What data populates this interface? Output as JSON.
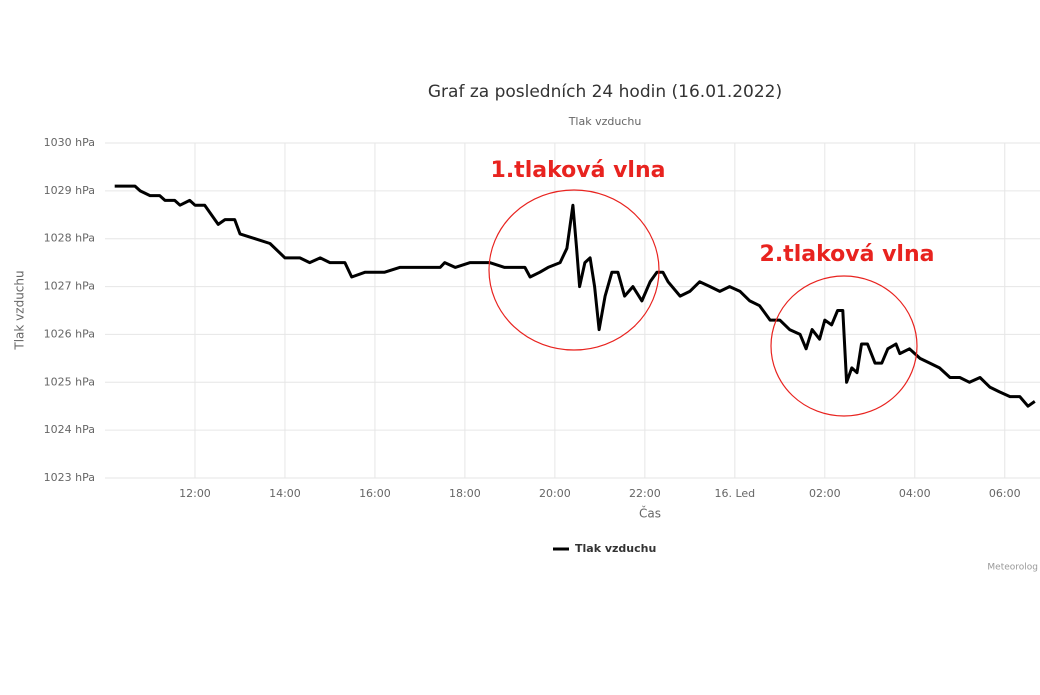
{
  "chart_data": {
    "type": "line",
    "title": "Graf za posledních 24 hodin (16.01.2022)",
    "subtitle": "Tlak vzduchu",
    "y_axis_title": "Tlak vzduchu",
    "x_axis_title": "Čas",
    "credit": "Meteorolog",
    "annotations": [
      {
        "text": "1.tlaková vlna",
        "color": "#e8231f"
      },
      {
        "text": "2.tlaková vlna",
        "color": "#e8231f"
      }
    ],
    "xlim": [
      "10:00",
      "06:47"
    ],
    "xticks": [
      "12:00",
      "14:00",
      "16:00",
      "18:00",
      "20:00",
      "22:00",
      {
        "value": "00:00",
        "label": "16. Led"
      },
      "02:00",
      "04:00",
      "06:00"
    ],
    "ylim": [
      1023,
      1030
    ],
    "yticks": [
      {
        "value": 1023,
        "label": "1023 hPa"
      },
      {
        "value": 1024,
        "label": "1024 hPa"
      },
      {
        "value": 1025,
        "label": "1025 hPa"
      },
      {
        "value": 1026,
        "label": "1026 hPa"
      },
      {
        "value": 1027,
        "label": "1027 hPa"
      },
      {
        "value": 1028,
        "label": "1028 hPa"
      },
      {
        "value": 1029,
        "label": "1029 hPa"
      },
      {
        "value": 1030,
        "label": "1030 hPa"
      }
    ],
    "grid": true,
    "legend": "bottom",
    "x": [
      "10:13",
      "10:40",
      "10:47",
      "11:00",
      "11:13",
      "11:20",
      "11:33",
      "11:40",
      "11:53",
      "12:00",
      "12:13",
      "12:31",
      "12:40",
      "12:53",
      "13:00",
      "13:20",
      "13:40",
      "14:00",
      "14:20",
      "14:33",
      "14:47",
      "15:00",
      "15:20",
      "15:29",
      "15:47",
      "16:00",
      "16:13",
      "16:33",
      "17:00",
      "17:27",
      "17:33",
      "17:47",
      "18:07",
      "18:33",
      "18:53",
      "19:20",
      "19:27",
      "19:40",
      "19:51",
      "20:07",
      "20:16",
      "20:24",
      "20:29",
      "20:33",
      "20:40",
      "20:47",
      "20:53",
      "20:59",
      "21:07",
      "21:16",
      "21:24",
      "21:33",
      "21:44",
      "21:56",
      "22:07",
      "22:16",
      "22:24",
      "22:31",
      "22:47",
      "23:00",
      "23:13",
      "23:27",
      "23:40",
      "23:53",
      "00:07",
      "00:20",
      "00:33",
      "00:47",
      "01:00",
      "01:13",
      "01:27",
      "01:35",
      "01:43",
      "01:53",
      "02:00",
      "02:09",
      "02:17",
      "02:24",
      "02:29",
      "02:36",
      "02:43",
      "02:49",
      "02:57",
      "03:07",
      "03:16",
      "03:24",
      "03:35",
      "03:40",
      "03:53",
      "04:07",
      "04:20",
      "04:33",
      "04:47",
      "05:00",
      "05:13",
      "05:27",
      "05:40",
      "05:53",
      "06:07",
      "06:20",
      "06:31",
      "06:40"
    ],
    "series": [
      {
        "name": "Tlak vzduchu",
        "color": "#000000",
        "values": [
          1029.1,
          1029.1,
          1029.0,
          1028.9,
          1028.9,
          1028.8,
          1028.8,
          1028.7,
          1028.8,
          1028.7,
          1028.7,
          1028.3,
          1028.4,
          1028.4,
          1028.1,
          1028.0,
          1027.9,
          1027.6,
          1027.6,
          1027.5,
          1027.6,
          1027.5,
          1027.5,
          1027.2,
          1027.3,
          1027.3,
          1027.3,
          1027.4,
          1027.4,
          1027.4,
          1027.5,
          1027.4,
          1027.5,
          1027.5,
          1027.4,
          1027.4,
          1027.2,
          1027.3,
          1027.4,
          1027.5,
          1027.8,
          1028.7,
          1027.8,
          1027.0,
          1027.5,
          1027.6,
          1027.0,
          1026.1,
          1026.8,
          1027.3,
          1027.3,
          1026.8,
          1027.0,
          1026.7,
          1027.1,
          1027.3,
          1027.3,
          1027.1,
          1026.8,
          1026.9,
          1027.1,
          1027.0,
          1026.9,
          1027.0,
          1026.9,
          1026.7,
          1026.6,
          1026.3,
          1026.3,
          1026.1,
          1026.0,
          1025.7,
          1026.1,
          1025.9,
          1026.3,
          1026.2,
          1026.5,
          1026.5,
          1025.0,
          1025.3,
          1025.2,
          1025.8,
          1025.8,
          1025.4,
          1025.4,
          1025.7,
          1025.8,
          1025.6,
          1025.7,
          1025.5,
          1025.4,
          1025.3,
          1025.1,
          1025.1,
          1025.0,
          1025.1,
          1024.9,
          1024.8,
          1024.7,
          1024.7,
          1024.5,
          1024.6
        ]
      }
    ]
  }
}
